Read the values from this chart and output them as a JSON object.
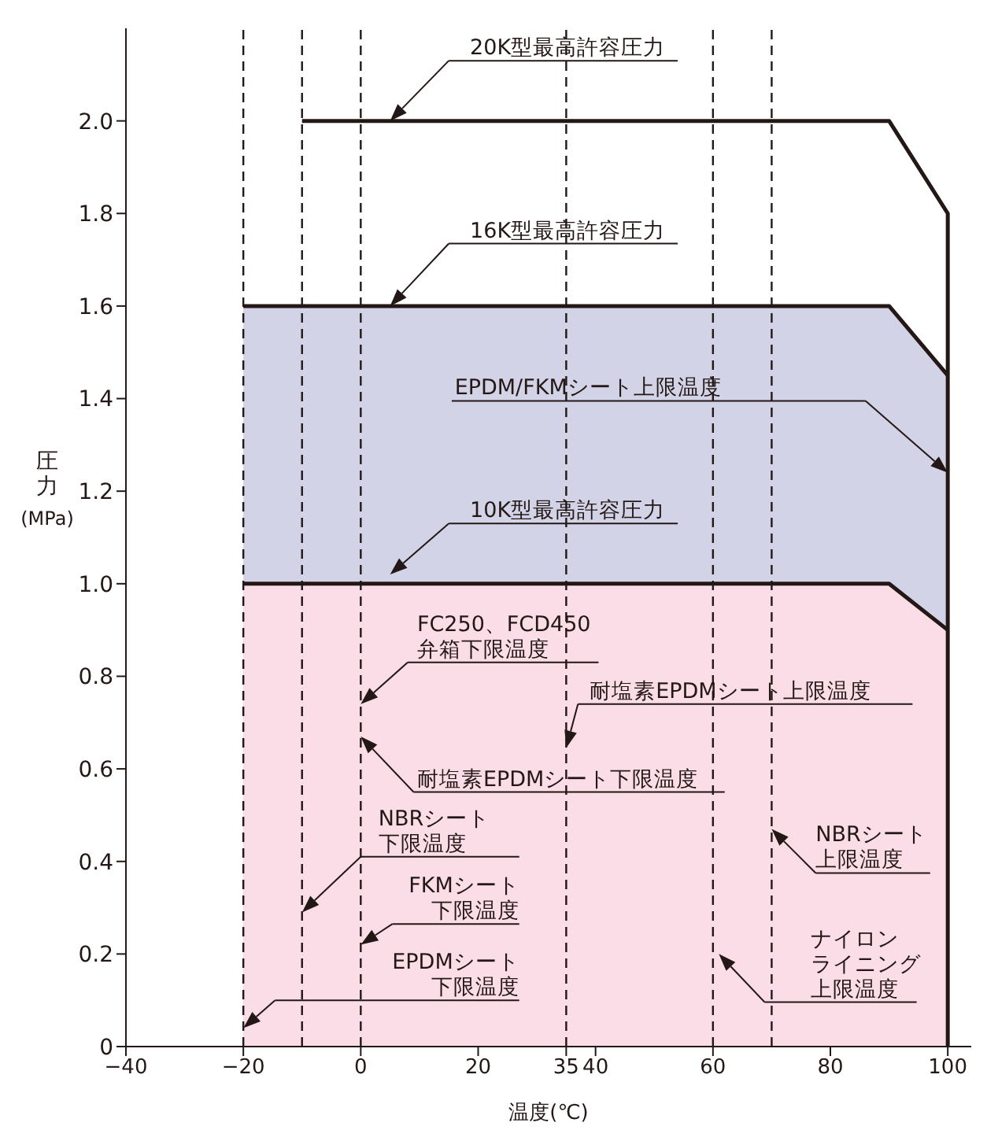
{
  "chart_data": {
    "type": "line",
    "xlabel": "温度(℃)",
    "ylabel": "圧力(MPa)",
    "xlim": [
      -40,
      104
    ],
    "ylim": [
      0,
      2.2
    ],
    "xticks": [
      {
        "value": -40,
        "label": "−40"
      },
      {
        "value": -20,
        "label": "−20"
      },
      0,
      20,
      35,
      40,
      60,
      80,
      100
    ],
    "yticks": [
      0,
      {
        "value": 0.2,
        "label": "0.2"
      },
      {
        "value": 0.4,
        "label": "0.4"
      },
      {
        "value": 0.6,
        "label": "0.6"
      },
      {
        "value": 0.8,
        "label": "0.8"
      },
      {
        "value": 1,
        "label": "1.0"
      },
      {
        "value": 1.2,
        "label": "1.2"
      },
      {
        "value": 1.4,
        "label": "1.4"
      },
      {
        "value": 1.6,
        "label": "1.6"
      },
      {
        "value": 1.8,
        "label": "1.8"
      },
      {
        "value": 2,
        "label": "2.0"
      }
    ],
    "series": [
      {
        "color": "#231815",
        "x": [
          -10,
          90,
          100,
          100
        ],
        "values": [
          2,
          2,
          1.8,
          0
        ]
      },
      {
        "type": "area",
        "color": "#d3d3e8",
        "x": [
          -20,
          90,
          100
        ],
        "values": [
          1.6,
          1.6,
          1.45
        ]
      },
      {
        "type": "area",
        "color": "#fbdde8",
        "x": [
          -20,
          90,
          100
        ],
        "values": [
          1,
          1,
          0.9
        ]
      }
    ],
    "ref_lines": [
      {
        "axis": "x",
        "value": -20,
        "line_style": "dashed",
        "color": "#231815"
      },
      {
        "axis": "x",
        "value": -10,
        "line_style": "dashed",
        "color": "#231815"
      },
      {
        "axis": "x",
        "value": 0,
        "line_style": "dashed",
        "color": "#231815"
      },
      {
        "axis": "x",
        "value": 35,
        "line_style": "dashed",
        "color": "#231815"
      },
      {
        "axis": "x",
        "value": 60,
        "line_style": "dashed",
        "color": "#231815"
      },
      {
        "axis": "x",
        "value": 70,
        "line_style": "dashed",
        "color": "#231815"
      }
    ],
    "annotations": [
      "20K型最高許容圧力",
      "16K型最高許容圧力",
      "EPDM/FKMシート上限温度",
      "10K型最高許容圧力",
      "FC250、FCD450弁箱下限温度",
      "耐塩素EPDMシート上限温度",
      "耐塩素EPDMシート下限温度",
      "NBRシート下限温度",
      {
        "text": "FKMシート下限温度",
        "x": 0,
        "y": 0.22
      },
      "EPDMシート下限温度",
      "NBRシート上限温度",
      "ナイロンライニング上限温度"
    ],
    "marker": "none"
  }
}
